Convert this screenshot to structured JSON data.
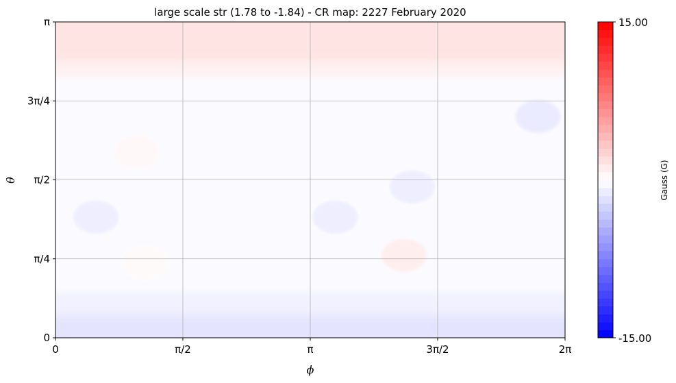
{
  "chart_data": {
    "type": "heatmap",
    "title": "large scale str (1.78 to -1.84) - CR map: 2227 February 2020",
    "xlabel": "ϕ",
    "ylabel": "θ",
    "xlim": [
      0,
      6.2832
    ],
    "ylim": [
      0,
      3.1416
    ],
    "x_ticks": [
      {
        "value": 0,
        "label": "0"
      },
      {
        "value": 1.5708,
        "label": "π/2"
      },
      {
        "value": 3.1416,
        "label": "π"
      },
      {
        "value": 4.7124,
        "label": "3π/2"
      },
      {
        "value": 6.2832,
        "label": "2π"
      }
    ],
    "y_ticks": [
      {
        "value": 0,
        "label": "0"
      },
      {
        "value": 0.7854,
        "label": "π/4"
      },
      {
        "value": 1.5708,
        "label": "π/2"
      },
      {
        "value": 2.3562,
        "label": "3π/4"
      },
      {
        "value": 3.1416,
        "label": "π"
      }
    ],
    "grid": true,
    "colormap": "bwr",
    "colors": {
      "low": "#0000ff",
      "mid": "#ffffff",
      "high": "#ff0000"
    },
    "colorbar": {
      "label": "Gauss (G)",
      "min": -15,
      "max": 15,
      "min_label": "-15.00",
      "max_label": "15.00"
    },
    "value_range": [
      -1.84,
      1.78
    ],
    "features": [
      {
        "type": "band",
        "theta_min": 2.75,
        "theta_max": 3.1416,
        "value": 1.6
      },
      {
        "type": "band",
        "theta_min": 2.6,
        "theta_max": 2.75,
        "value": 0.8
      },
      {
        "type": "band",
        "theta_min": 0.22,
        "theta_max": 0.45,
        "value": -0.8
      },
      {
        "type": "band",
        "theta_min": 0.0,
        "theta_max": 0.22,
        "value": -1.6
      },
      {
        "type": "blob",
        "phi": 0.5,
        "theta": 1.2,
        "value": -1.0
      },
      {
        "type": "blob",
        "phi": 3.45,
        "theta": 1.2,
        "value": -1.0
      },
      {
        "type": "blob",
        "phi": 4.4,
        "theta": 1.5,
        "value": -1.0
      },
      {
        "type": "blob",
        "phi": 5.95,
        "theta": 2.2,
        "value": -1.2
      },
      {
        "type": "blob",
        "phi": 4.3,
        "theta": 0.82,
        "value": 1.0
      },
      {
        "type": "blob",
        "phi": 1.0,
        "theta": 1.85,
        "value": 0.4
      },
      {
        "type": "blob",
        "phi": 1.1,
        "theta": 0.75,
        "value": 0.3
      }
    ]
  }
}
